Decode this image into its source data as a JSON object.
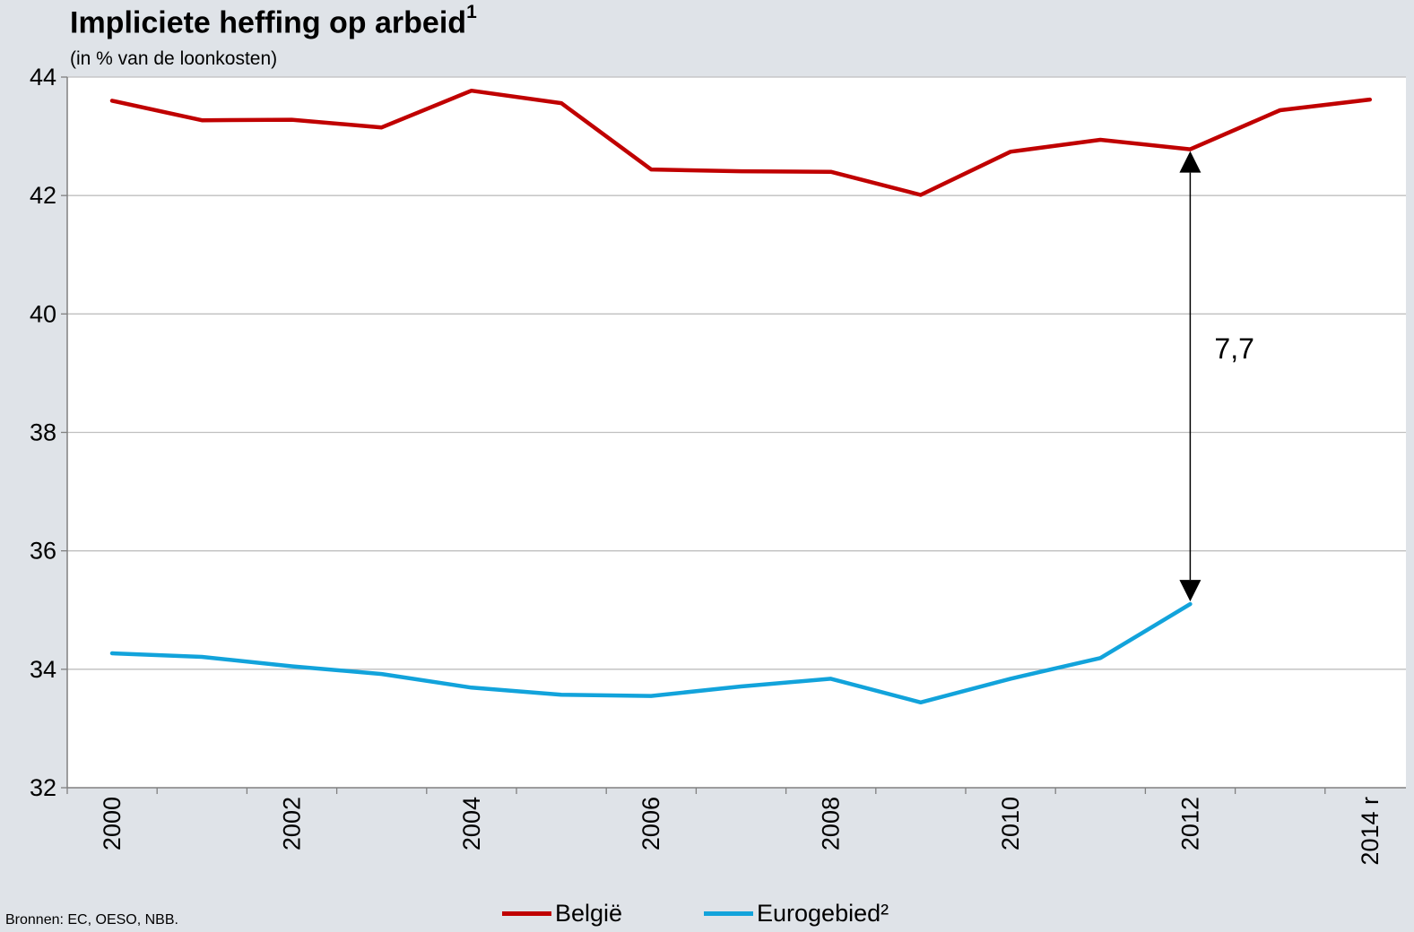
{
  "title": {
    "text": "Impliciete heffing op arbeid",
    "footnote": "1"
  },
  "subtitle": "(in % van de loonkosten)",
  "source": "Bronnen: EC, OESO, NBB.",
  "annotation": {
    "gap_label": "7,7",
    "x": 2012,
    "from": 42.78,
    "to": 35.1
  },
  "chart_data": {
    "type": "line",
    "x": [
      2000,
      2001,
      2002,
      2003,
      2004,
      2005,
      2006,
      2007,
      2008,
      2009,
      2010,
      2011,
      2012,
      2013,
      2014
    ],
    "xtick_values": [
      2000,
      2002,
      2004,
      2006,
      2008,
      2010,
      2012,
      2014
    ],
    "xtick_labels": [
      "2000",
      "2002",
      "2004",
      "2006",
      "2008",
      "2010",
      "2012",
      "2014 r"
    ],
    "yticks": [
      32,
      34,
      36,
      38,
      40,
      42,
      44
    ],
    "ylim": [
      32,
      44
    ],
    "grid": true,
    "legend_position": "bottom",
    "series": [
      {
        "name": "België",
        "color": "#c00000",
        "values": [
          43.6,
          43.27,
          43.28,
          43.15,
          43.77,
          43.56,
          42.44,
          42.41,
          42.4,
          42.01,
          42.74,
          42.94,
          42.78,
          43.44,
          43.62
        ]
      },
      {
        "name": "Eurogebied²",
        "color": "#12a3db",
        "values": [
          34.27,
          34.21,
          34.05,
          33.92,
          33.69,
          33.57,
          33.55,
          33.71,
          33.84,
          33.44,
          33.84,
          34.19,
          35.1,
          null,
          null
        ]
      }
    ]
  }
}
